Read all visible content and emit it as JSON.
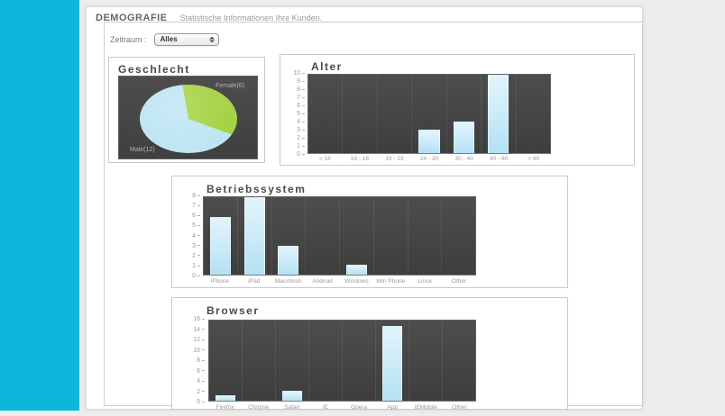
{
  "app": {
    "title": "DEMOGRAFIE",
    "subtitle": "Statistische Informationen Ihre Kunden."
  },
  "filter": {
    "label": "Zeitraum :",
    "selected": "Alles",
    "stepper_icon": "up-down-stepper"
  },
  "colors": {
    "accent_sidebar": "#0db7dc",
    "bar_fill": "#b4e1f4",
    "pie_female": "#a6d245",
    "pie_male": "#bfe5f3",
    "chart_background": "#454545"
  },
  "chart_data": [
    {
      "type": "pie",
      "title": "Geschlecht",
      "slices": [
        {
          "label": "Female(6)",
          "value": 6,
          "color": "#a6d245"
        },
        {
          "label": "Male(12)",
          "value": 12,
          "color": "#bfe5f3"
        }
      ],
      "start_angle_deg": 350
    },
    {
      "type": "bar",
      "title": "Alter",
      "categories": [
        "< 16",
        "16 - 18",
        "19 - 23",
        "24 - 30",
        "30 - 40",
        "40 - 60",
        "> 60"
      ],
      "values": [
        0,
        0,
        0,
        3,
        4,
        10,
        0
      ],
      "ylim": [
        0,
        10
      ],
      "ytick_step": 1,
      "grid": "column-separators",
      "legend": "none"
    },
    {
      "type": "bar",
      "title": "Betriebssystem",
      "categories": [
        "iPhone",
        "iPad",
        "Macintosh",
        "Android",
        "Windows",
        "Win Phone",
        "Linux",
        "Other"
      ],
      "values": [
        6,
        8,
        3,
        0,
        1,
        0,
        0,
        0
      ],
      "ylim": [
        0,
        8
      ],
      "ytick_step": 1,
      "grid": "column-separators",
      "legend": "none"
    },
    {
      "type": "bar",
      "title": "Browser",
      "categories": [
        "Firefox",
        "Chrome",
        "Safari",
        "IE",
        "Opera",
        "App",
        "IEMobile",
        "Other"
      ],
      "values": [
        1,
        0,
        2,
        0,
        0,
        15,
        0,
        0
      ],
      "ylim": [
        0,
        16
      ],
      "ytick_step": 2,
      "grid": "column-separators",
      "legend": "none"
    }
  ]
}
